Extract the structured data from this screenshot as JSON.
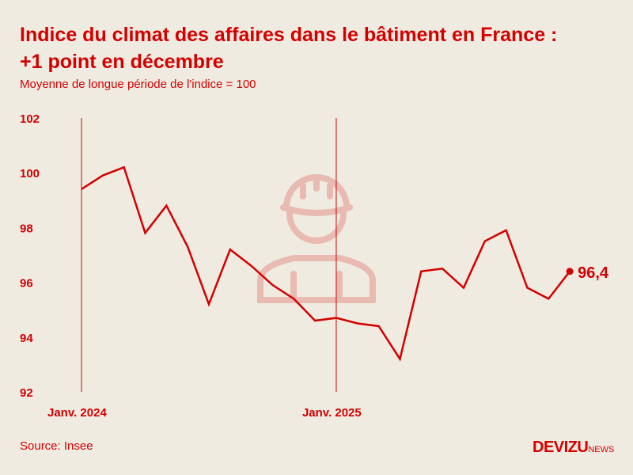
{
  "title_line1": "Indice du climat des affaires dans le bâtiment en France :",
  "title_line2": "+1 point en décembre",
  "subtitle": "Moyenne de longue période de l'indice = 100",
  "source": "Source: Insee",
  "logo": {
    "main": "DEVIZU",
    "suffix": "NEWS"
  },
  "colors": {
    "line": "#d40000",
    "background": "#efebe1",
    "icon": "#e8bab2"
  },
  "background_icon": "construction-worker-helmet-icon",
  "chart_data": {
    "type": "line",
    "x": [
      "2024-01",
      "2024-02",
      "2024-03",
      "2024-04",
      "2024-05",
      "2024-06",
      "2024-07",
      "2024-08",
      "2024-09",
      "2024-10",
      "2024-11",
      "2024-12",
      "2025-01",
      "2025-02",
      "2025-03",
      "2025-04",
      "2025-05",
      "2025-06",
      "2025-07",
      "2025-08",
      "2025-09",
      "2025-10",
      "2025-11",
      "2025-12"
    ],
    "values": [
      99.4,
      99.9,
      100.2,
      97.8,
      98.8,
      97.3,
      95.2,
      97.2,
      96.6,
      95.9,
      95.4,
      94.6,
      94.7,
      94.5,
      94.4,
      93.2,
      96.4,
      96.5,
      95.8,
      97.5,
      97.9,
      95.8,
      95.4,
      96.4
    ],
    "ylim": [
      92,
      102
    ],
    "yticks": [
      "92",
      "94",
      "96",
      "98",
      "100",
      "102"
    ],
    "xtick_labels": [
      {
        "index": 0,
        "label": "Janv. 2024"
      },
      {
        "index": 12,
        "label": "Janv. 2025"
      }
    ],
    "end_label": "96,4",
    "grid": false
  }
}
